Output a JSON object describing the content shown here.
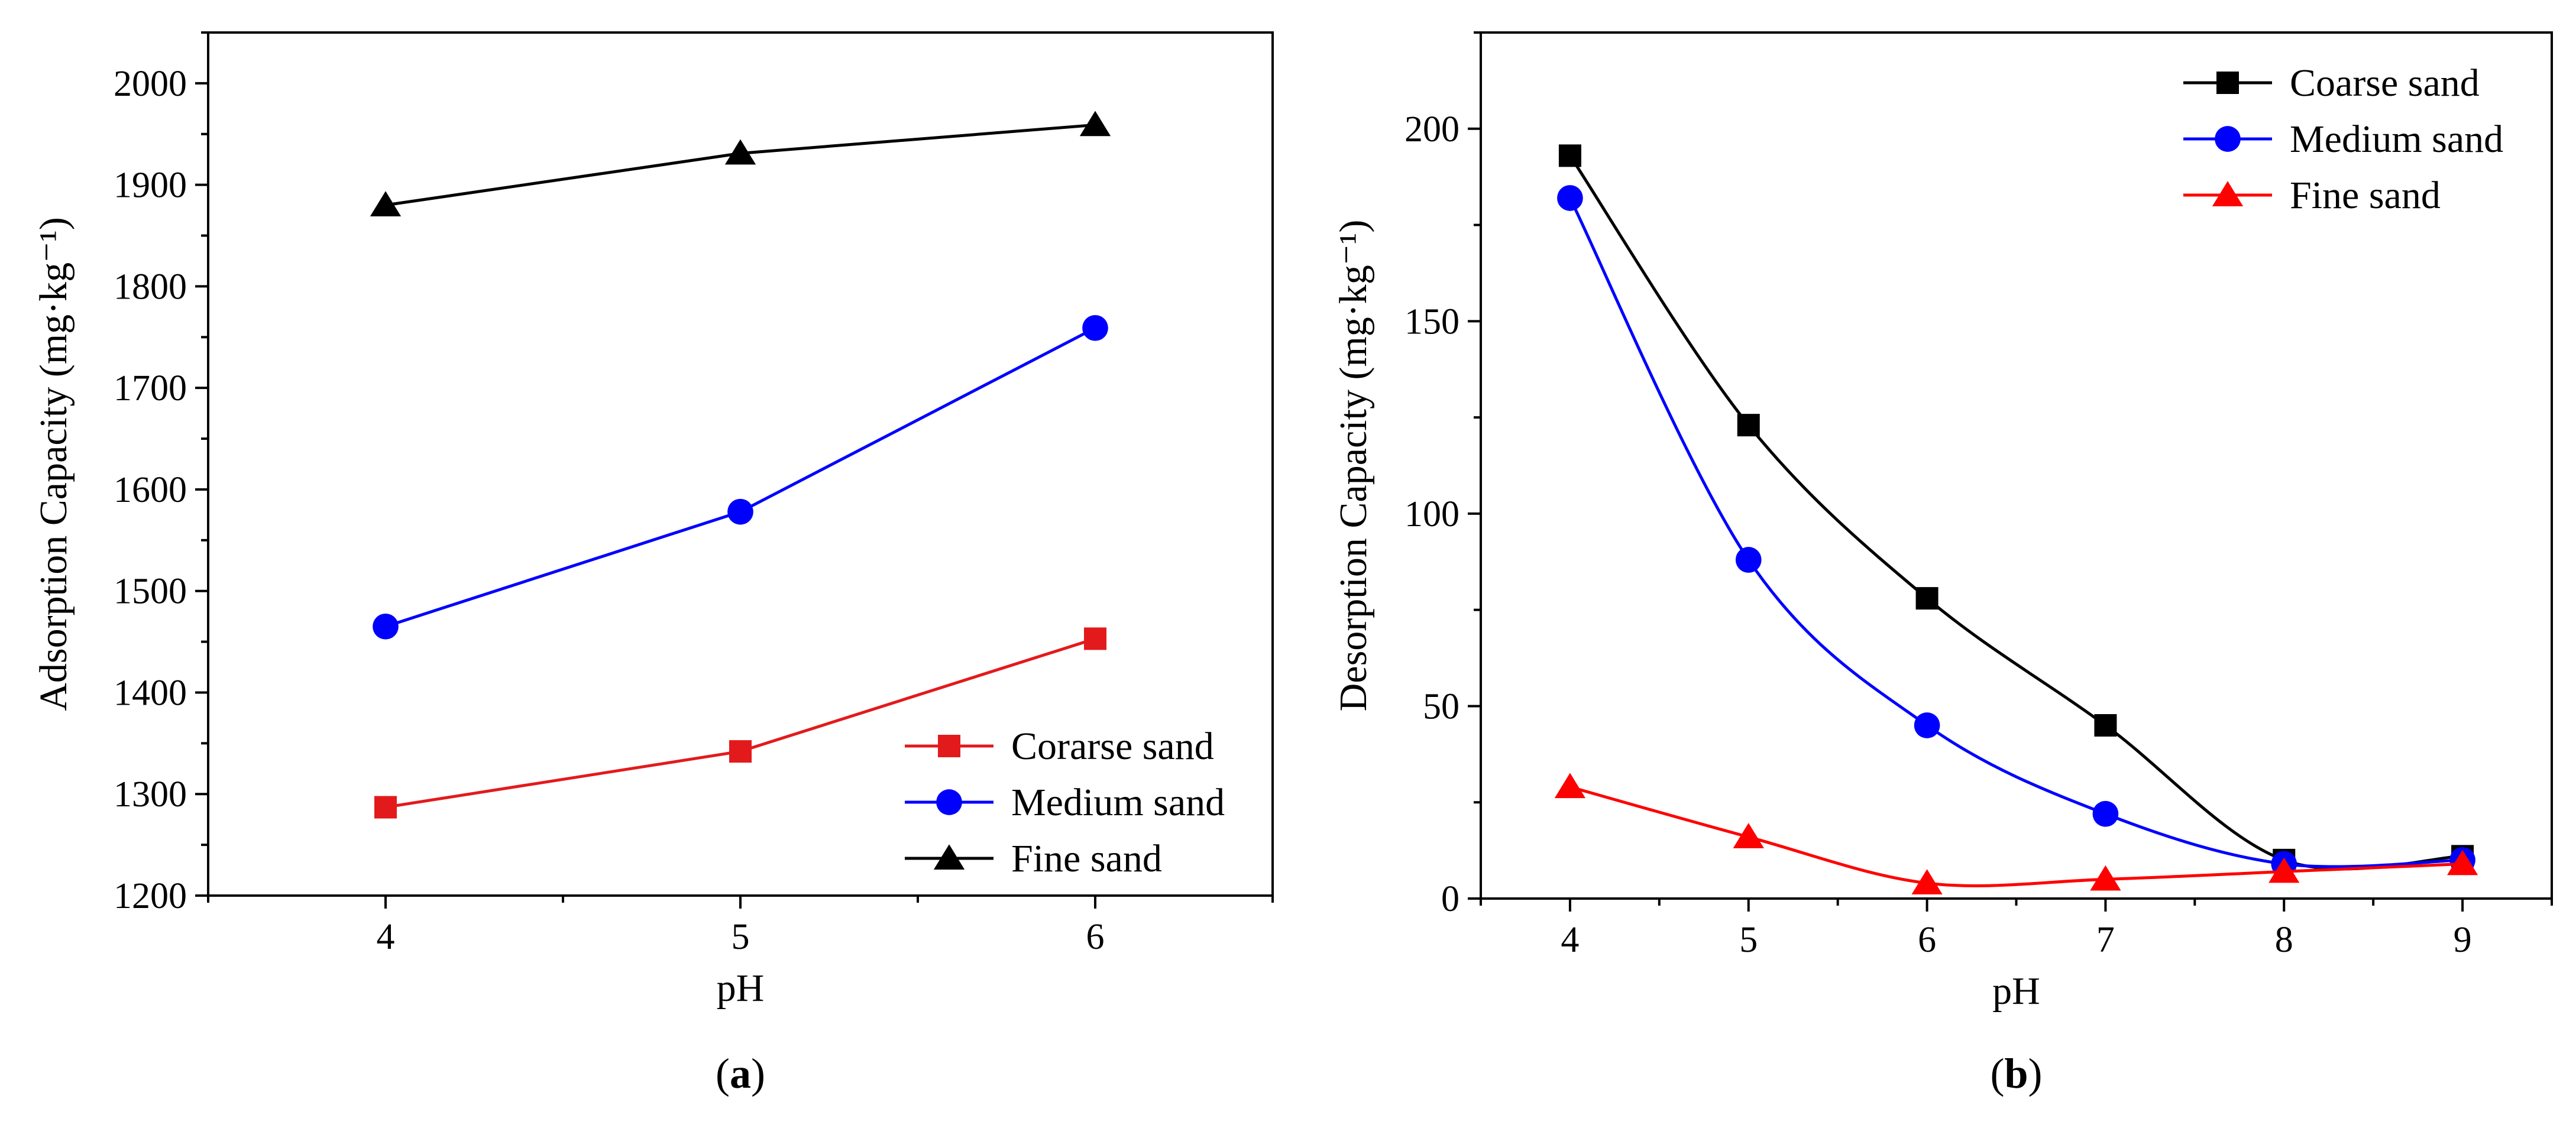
{
  "chart_data": [
    {
      "type": "line",
      "panel_label": "a",
      "xlabel": "pH",
      "ylabel": "Adsorption Capacity (mg·kg⁻¹)",
      "xlim": [
        3.5,
        6.5
      ],
      "ylim": [
        1200,
        2050
      ],
      "x_ticks": [
        4,
        5,
        6
      ],
      "y_ticks": [
        1200,
        1300,
        1400,
        1500,
        1600,
        1700,
        1800,
        1900,
        2000
      ],
      "legend_position": "bottom-right",
      "series": [
        {
          "name": "Corarse sand",
          "marker": "square",
          "color": "#e31a1c",
          "x": [
            4,
            5,
            6
          ],
          "y": [
            1287,
            1342,
            1453
          ]
        },
        {
          "name": "Medium sand",
          "marker": "circle",
          "color": "#0000ff",
          "x": [
            4,
            5,
            6
          ],
          "y": [
            1465,
            1578,
            1759
          ]
        },
        {
          "name": "Fine sand",
          "marker": "triangle",
          "color": "#000000",
          "x": [
            4,
            5,
            6
          ],
          "y": [
            1880,
            1931,
            1959
          ]
        }
      ]
    },
    {
      "type": "line",
      "panel_label": "b",
      "xlabel": "pH",
      "ylabel": "Desorption Capacity (mg·kg⁻¹)",
      "xlim": [
        3.5,
        9.5
      ],
      "ylim": [
        0,
        225
      ],
      "x_ticks": [
        4,
        5,
        6,
        7,
        8,
        9
      ],
      "y_ticks": [
        0,
        50,
        100,
        150,
        200
      ],
      "legend_position": "top-right",
      "smooth": true,
      "series": [
        {
          "name": "Coarse sand",
          "marker": "square",
          "color": "#000000",
          "x": [
            4,
            5,
            6,
            7,
            8,
            9
          ],
          "y": [
            193,
            123,
            78,
            45,
            10,
            11
          ]
        },
        {
          "name": "Medium sand",
          "marker": "circle",
          "color": "#0000ff",
          "x": [
            4,
            5,
            6,
            7,
            8,
            9
          ],
          "y": [
            182,
            88,
            45,
            22,
            9,
            10
          ]
        },
        {
          "name": "Fine sand",
          "marker": "triangle",
          "color": "#ff0000",
          "x": [
            4,
            5,
            6,
            7,
            8,
            9
          ],
          "y": [
            29,
            16,
            4,
            5,
            7,
            9
          ]
        }
      ]
    }
  ]
}
